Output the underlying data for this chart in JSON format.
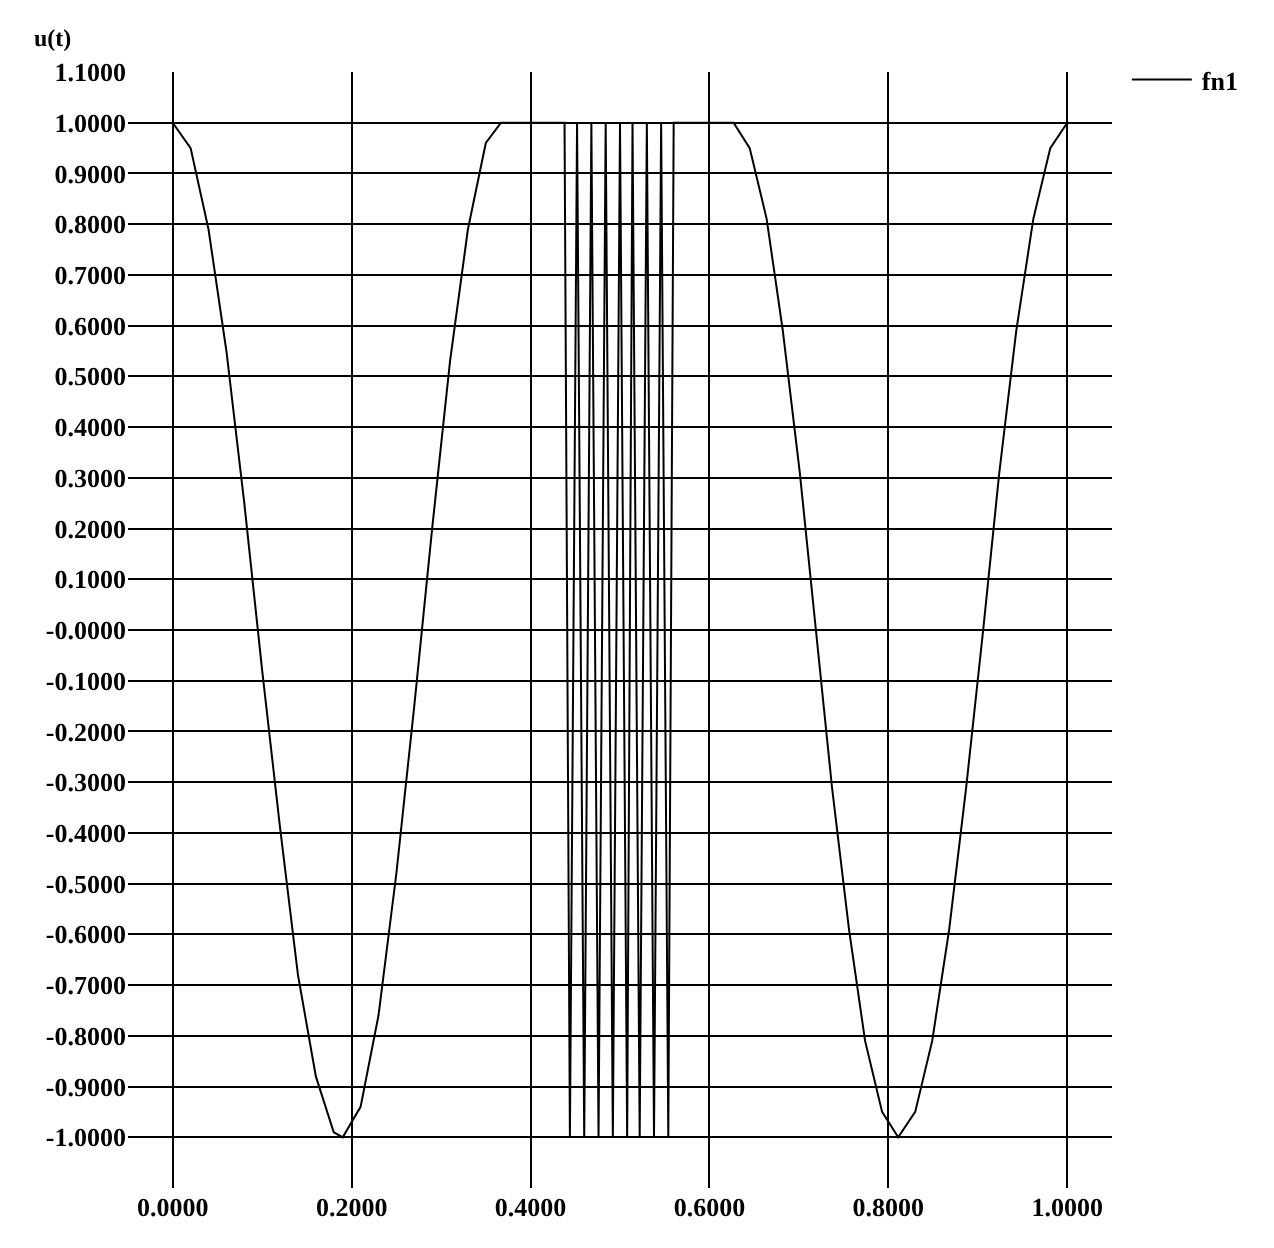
{
  "chart_data": {
    "type": "line",
    "ylabel": "u(t)",
    "x": [
      0,
      0.02,
      0.04,
      0.06,
      0.08,
      0.1,
      0.12,
      0.14,
      0.16,
      0.18,
      0.19,
      0.21,
      0.23,
      0.25,
      0.27,
      0.29,
      0.31,
      0.33,
      0.35,
      0.367,
      0.438,
      0.444,
      0.452,
      0.46,
      0.468,
      0.476,
      0.484,
      0.492,
      0.5,
      0.508,
      0.514,
      0.522,
      0.53,
      0.538,
      0.546,
      0.554,
      0.56,
      0.627,
      0.645,
      0.664,
      0.682,
      0.701,
      0.719,
      0.737,
      0.756,
      0.774,
      0.793,
      0.811,
      0.83,
      0.849,
      0.868,
      0.887,
      0.906,
      0.924,
      0.943,
      0.962,
      0.981,
      1.0
    ],
    "series": [
      {
        "name": "fn1",
        "color": "#000000",
        "values": [
          1,
          0.95,
          0.79,
          0.55,
          0.25,
          -0.08,
          -0.39,
          -0.68,
          -0.88,
          -0.99,
          -1,
          -0.94,
          -0.76,
          -0.48,
          -0.15,
          0.2,
          0.53,
          0.79,
          0.96,
          1,
          1,
          -1,
          1,
          -1,
          1,
          -1,
          1,
          -1,
          1,
          -1,
          1,
          -1,
          1,
          -1,
          1,
          -1,
          1,
          1,
          0.95,
          0.81,
          0.59,
          0.31,
          0,
          -0.31,
          -0.59,
          -0.81,
          -0.95,
          -1,
          -0.95,
          -0.81,
          -0.59,
          -0.31,
          0,
          0.31,
          0.59,
          0.81,
          0.95,
          1
        ]
      }
    ],
    "xlim": [
      -0.05,
      1.05
    ],
    "xticks": [
      {
        "value": 0,
        "label": "0.0000"
      },
      {
        "value": 0.2,
        "label": "0.2000"
      },
      {
        "value": 0.4,
        "label": "0.4000"
      },
      {
        "value": 0.6,
        "label": "0.6000"
      },
      {
        "value": 0.8,
        "label": "0.8000"
      },
      {
        "value": 1,
        "label": "1.0000"
      }
    ],
    "ylim": [
      -1.1,
      1.1
    ],
    "yticks": [
      {
        "value": 1.1,
        "label": "1.1000"
      },
      {
        "value": 1,
        "label": "1.0000"
      },
      {
        "value": 0.9,
        "label": "0.9000"
      },
      {
        "value": 0.8,
        "label": "0.8000"
      },
      {
        "value": 0.7,
        "label": "0.7000"
      },
      {
        "value": 0.6,
        "label": "0.6000"
      },
      {
        "value": 0.5,
        "label": "0.5000"
      },
      {
        "value": 0.4,
        "label": "0.4000"
      },
      {
        "value": 0.3,
        "label": "0.3000"
      },
      {
        "value": 0.2,
        "label": "0.2000"
      },
      {
        "value": 0.1,
        "label": "0.1000"
      },
      {
        "value": 0,
        "label": "-0.0000"
      },
      {
        "value": -0.1,
        "label": "-0.1000"
      },
      {
        "value": -0.2,
        "label": "-0.2000"
      },
      {
        "value": -0.3,
        "label": "-0.3000"
      },
      {
        "value": -0.4,
        "label": "-0.4000"
      },
      {
        "value": -0.5,
        "label": "-0.5000"
      },
      {
        "value": -0.6,
        "label": "-0.6000"
      },
      {
        "value": -0.7,
        "label": "-0.7000"
      },
      {
        "value": -0.8,
        "label": "-0.8000"
      },
      {
        "value": -0.9,
        "label": "-0.9000"
      },
      {
        "value": -1,
        "label": "-1.0000"
      }
    ],
    "grid": true,
    "legend": "top right",
    "marker": "none",
    "line_style": "solid"
  }
}
